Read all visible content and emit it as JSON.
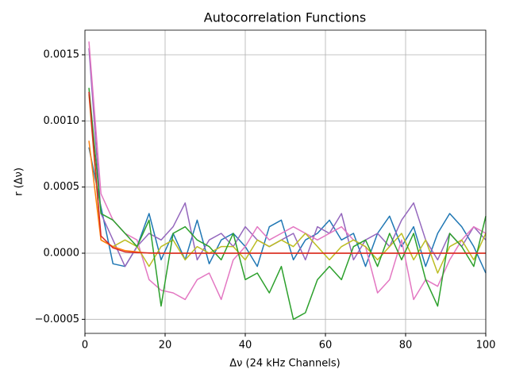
{
  "chart_data": {
    "type": "line",
    "title": "Autocorrelation Functions",
    "x_label": "Δν (24 kHz Channels)",
    "y_label": "r (Δν)",
    "x": [
      1,
      4,
      7,
      10,
      13,
      16,
      19,
      22,
      25,
      28,
      31,
      34,
      37,
      40,
      43,
      46,
      49,
      52,
      55,
      58,
      61,
      64,
      67,
      70,
      73,
      76,
      79,
      82,
      85,
      88,
      91,
      94,
      97,
      100
    ],
    "series": [
      {
        "color": "#1f77b4",
        "values": [
          0.0008,
          0.00035,
          -8e-05,
          -0.0001,
          5e-05,
          0.0003,
          -5e-05,
          0.00015,
          -5e-05,
          0.00025,
          -8e-05,
          0.0001,
          0.00015,
          5e-05,
          -0.0001,
          0.0002,
          0.00025,
          -5e-05,
          0.0001,
          0.00015,
          0.00025,
          0.0001,
          0.00015,
          -0.0001,
          0.00015,
          0.00028,
          5e-05,
          0.0002,
          -0.0001,
          0.00015,
          0.0003,
          0.0002,
          5e-05,
          -0.00015
        ]
      },
      {
        "color": "#9467bd",
        "values": [
          0.00155,
          0.0003,
          0.0001,
          -0.0001,
          5e-05,
          0.00015,
          0.0001,
          0.0002,
          0.00038,
          -5e-05,
          0.0001,
          0.00015,
          5e-05,
          0.0002,
          0.0001,
          5e-05,
          0.0001,
          0.00015,
          -5e-05,
          0.0002,
          0.00015,
          0.0003,
          -5e-05,
          0.0001,
          0.00015,
          5e-05,
          0.00025,
          0.00038,
          0.0001,
          -5e-05,
          0.00015,
          5e-05,
          0.0002,
          0.0001
        ]
      },
      {
        "color": "#e377c2",
        "values": [
          0.0016,
          0.00045,
          0.00025,
          0.00015,
          0.0001,
          -0.0002,
          -0.00028,
          -0.0003,
          -0.00035,
          -0.0002,
          -0.00015,
          -0.00035,
          -5e-05,
          5e-05,
          0.0002,
          0.0001,
          0.00015,
          0.0002,
          0.00015,
          0.0001,
          0.00015,
          0.0002,
          0.0001,
          5e-05,
          -0.0003,
          -0.0002,
          0.0001,
          -0.00035,
          -0.0002,
          -0.00025,
          -5e-05,
          0.0001,
          0.0002,
          0.00015
        ]
      },
      {
        "color": "#bcbd22",
        "values": [
          0.0012,
          0.0001,
          5e-05,
          0.0001,
          5e-05,
          -0.0001,
          5e-05,
          0.0001,
          -5e-05,
          5e-05,
          0,
          5e-05,
          5e-05,
          -5e-05,
          0.0001,
          5e-05,
          0.0001,
          5e-05,
          0.00015,
          5e-05,
          -5e-05,
          5e-05,
          0.0001,
          5e-05,
          -5e-05,
          5e-05,
          0.00015,
          -5e-05,
          0.0001,
          -0.00015,
          5e-05,
          0.0001,
          -5e-05,
          0.00015
        ]
      },
      {
        "color": "#2ca02c",
        "values": [
          0.00125,
          0.0003,
          0.00025,
          0.00015,
          5e-05,
          0.00025,
          -0.0004,
          0.00015,
          0.0002,
          0.0001,
          5e-05,
          -5e-05,
          0.00015,
          -0.0002,
          -0.00015,
          -0.0003,
          -0.0001,
          -0.0005,
          -0.00045,
          -0.0002,
          -0.0001,
          -0.0002,
          5e-05,
          0.0001,
          -0.0001,
          0.00015,
          -5e-05,
          0.00015,
          -0.0002,
          -0.0004,
          0.00015,
          5e-05,
          -0.0001,
          0.00028
        ]
      },
      {
        "color": "#ff7f0e",
        "values": [
          0.00085,
          0.0001,
          5e-05,
          2e-05,
          1e-05,
          0,
          0,
          0,
          0,
          0,
          0,
          0,
          0,
          0,
          0,
          0,
          0,
          0,
          0,
          0,
          0,
          0,
          0,
          0,
          0,
          0,
          0,
          0,
          0,
          0,
          0,
          0,
          0,
          0
        ]
      },
      {
        "color": "#d62728",
        "values": [
          0.00122,
          0.00013,
          4e-05,
          1e-05,
          4e-06,
          2e-06,
          0,
          0,
          0,
          0,
          0,
          0,
          0,
          0,
          0,
          0,
          0,
          0,
          0,
          0,
          0,
          0,
          0,
          0,
          0,
          0,
          0,
          0,
          0,
          0,
          0,
          0,
          0,
          0
        ]
      }
    ],
    "xlim": [
      0,
      100
    ],
    "xticks": [
      0,
      20,
      40,
      60,
      80,
      100
    ],
    "ylim": [
      -0.000606,
      0.001686
    ],
    "yticks": [
      {
        "value": -0.0005,
        "label": "−0.0005"
      },
      {
        "value": 0,
        "label": "0.0000"
      },
      {
        "value": 0.0005,
        "label": "0.0005"
      },
      {
        "value": 0.001,
        "label": "0.0010"
      },
      {
        "value": 0.0015,
        "label": "0.0015"
      }
    ],
    "grid": true
  }
}
